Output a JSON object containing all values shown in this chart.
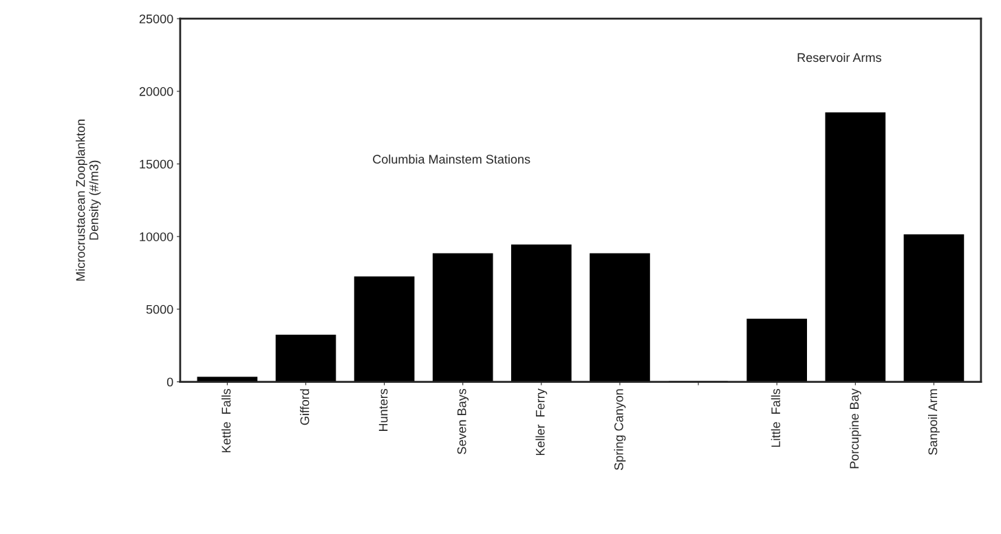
{
  "chart_data": {
    "type": "bar",
    "ylabel": "Microcrustacean Zooplankton\nDensity (#/m3)",
    "categories": [
      "Kettle  Falls",
      "Gifford",
      "Hunters",
      "Seven Bays",
      "Keller  Ferry",
      "Spring Canyon",
      null,
      "Little  Falls",
      "Porcupine Bay",
      "Sanpoil Arm"
    ],
    "values": [
      300,
      3200,
      7200,
      8800,
      9400,
      8800,
      0,
      4300,
      18500,
      10100
    ],
    "color": "#000000",
    "ylim": [
      0,
      25000
    ],
    "yticks": [
      0,
      5000,
      10000,
      15000,
      20000,
      25000
    ],
    "annotations": [
      "Columbia Mainstem Stations",
      "Reservoir Arms"
    ],
    "grid": false
  }
}
